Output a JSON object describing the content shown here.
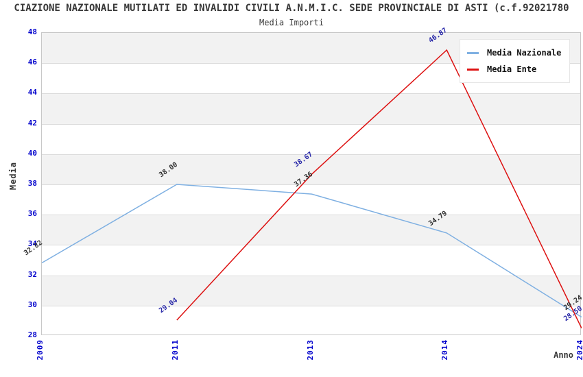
{
  "header": {
    "title": "CIAZIONE NAZIONALE MUTILATI ED INVALIDI CIVILI A.N.M.I.C. SEDE PROVINCIALE DI ASTI (c.f.92021780",
    "subtitle": "Media Importi"
  },
  "colors": {
    "band_gray": "#f2f2f2",
    "gridline": "#dcdcdc",
    "plot_border": "#c8c8c8",
    "axis_tick_blue": "#0000cc",
    "label_dark": "#303030",
    "label_navy": "#2828a8",
    "title_gray": "#383838",
    "nazionale_blue": "#7fb0e2",
    "ente_red": "#dd1111"
  },
  "chart_data": {
    "type": "line",
    "title": "Media Importi",
    "xlabel": "Anno",
    "ylabel": "Media",
    "ylim": [
      28,
      48
    ],
    "ytick_step": 2,
    "yticks": [
      48,
      46,
      44,
      42,
      40,
      38,
      36,
      34,
      32,
      30,
      28
    ],
    "categories": [
      "2009",
      "2011",
      "2013",
      "2014",
      "2024"
    ],
    "grid": "horizontal-only",
    "band_fill": "alternating",
    "legend_position": "top-right",
    "series": [
      {
        "name": "Media Nazionale",
        "color": "#7fb0e2",
        "label_color": "#303030",
        "points": [
          {
            "x": "2009",
            "y": 32.82,
            "label": "32.82"
          },
          {
            "x": "2011",
            "y": 38.0,
            "label": "38.00"
          },
          {
            "x": "2013",
            "y": 37.36,
            "label": "37.36"
          },
          {
            "x": "2014",
            "y": 34.79,
            "label": "34.79"
          },
          {
            "x": "2024",
            "y": 29.24,
            "label": "29.24"
          }
        ]
      },
      {
        "name": "Media Ente",
        "color": "#dd1111",
        "label_color": "#2828a8",
        "points": [
          {
            "x": "2011",
            "y": 29.04,
            "label": "29.04"
          },
          {
            "x": "2013",
            "y": 38.67,
            "label": "38.67"
          },
          {
            "x": "2014",
            "y": 46.87,
            "label": "46.87"
          },
          {
            "x": "2024",
            "y": 28.5,
            "label": "28.50"
          }
        ]
      }
    ]
  }
}
